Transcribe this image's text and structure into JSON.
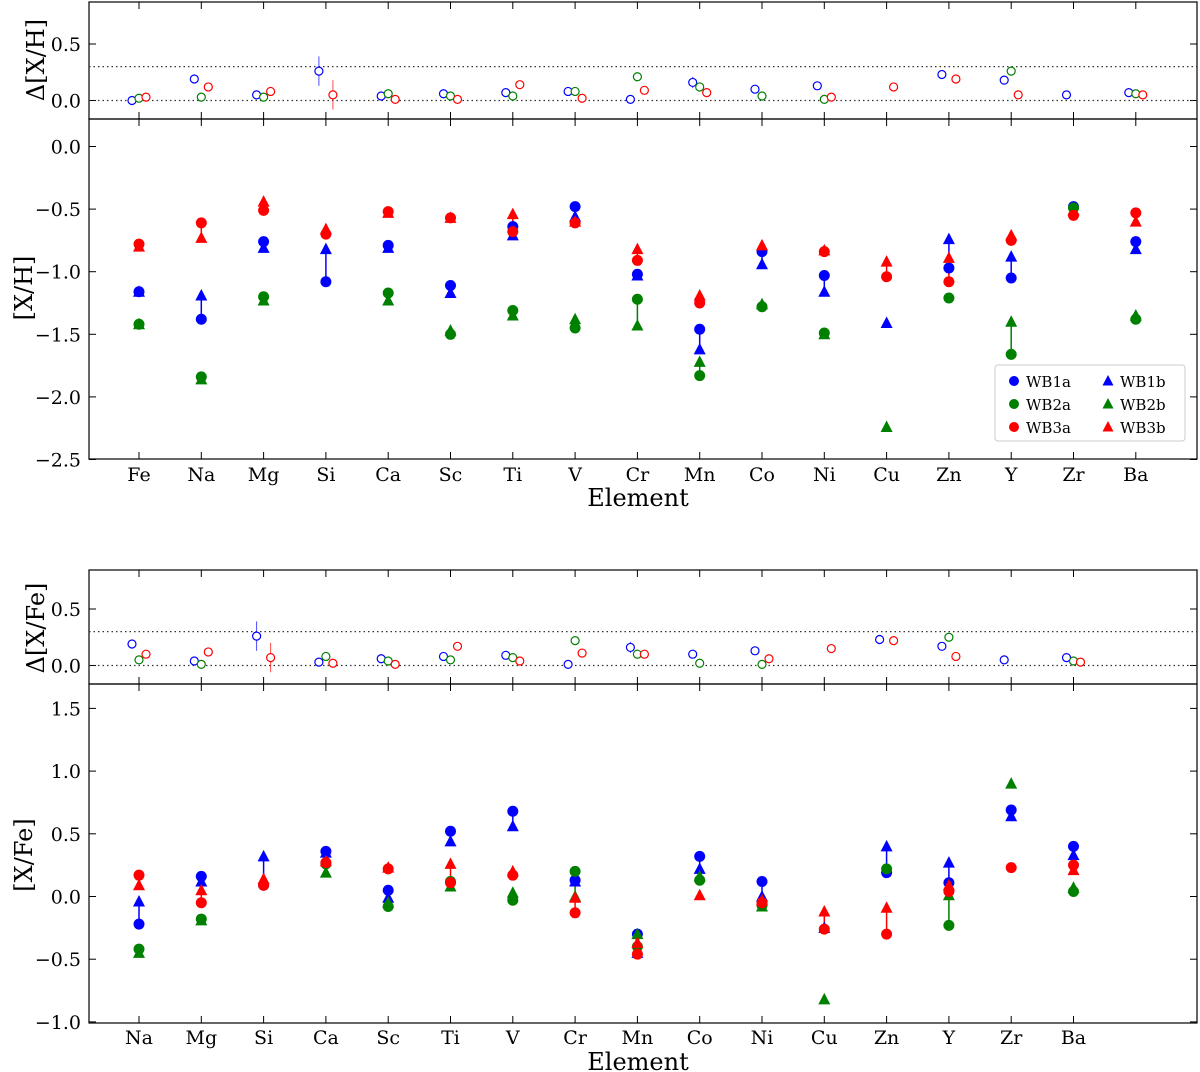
{
  "figure": {
    "x_label": "Element",
    "panel_y_labels": [
      "Δ[X/H]",
      "[X/H]",
      "Δ[X/Fe]",
      "[X/Fe]"
    ]
  },
  "chart_data": [
    {
      "type": "scatter",
      "panel": "delta_XH",
      "ylabel": "Δ[X/H]",
      "xlabel": "",
      "categories": [
        "Fe",
        "Na",
        "Mg",
        "Si",
        "Ca",
        "Sc",
        "Ti",
        "V",
        "Cr",
        "Mn",
        "Co",
        "Ni",
        "Cu",
        "Zn",
        "Y",
        "Zr",
        "Ba"
      ],
      "ylim": [
        -0.12,
        0.5
      ],
      "yticks": [
        0.0,
        0.5
      ],
      "ytick_labels": [
        "0.0",
        "0.5"
      ],
      "reference_lines": [
        0.0,
        0.3
      ],
      "marker": "open-circle",
      "series": [
        {
          "key": "WB1",
          "color": "#0000ff",
          "values": [
            0.0,
            0.19,
            0.05,
            0.26,
            0.04,
            0.06,
            0.07,
            0.08,
            0.01,
            0.16,
            0.1,
            0.13,
            null,
            0.23,
            0.18,
            0.05,
            0.07
          ],
          "errors": [
            0,
            0,
            0,
            0.13,
            0,
            0.04,
            0,
            0,
            0.02,
            0.05,
            0,
            0,
            0,
            0,
            0,
            0,
            0
          ]
        },
        {
          "key": "WB2",
          "color": "#008000",
          "values": [
            0.02,
            0.03,
            0.03,
            null,
            0.06,
            0.04,
            0.04,
            0.08,
            0.21,
            0.12,
            0.04,
            0.01,
            null,
            null,
            0.26,
            null,
            0.06
          ],
          "errors": [
            0,
            0,
            0,
            0,
            0,
            0,
            0,
            0,
            0,
            0.04,
            0,
            0,
            0,
            0,
            0,
            0,
            0
          ]
        },
        {
          "key": "WB3",
          "color": "#ff0000",
          "values": [
            0.03,
            0.12,
            0.08,
            0.05,
            0.01,
            0.01,
            0.14,
            0.02,
            0.09,
            0.07,
            null,
            0.03,
            0.12,
            0.19,
            0.05,
            null,
            0.05
          ],
          "errors": [
            0,
            0,
            0,
            0.13,
            0,
            0.03,
            0,
            0,
            0.03,
            0.04,
            0,
            0,
            0,
            0,
            0,
            0,
            0
          ]
        }
      ]
    },
    {
      "type": "scatter",
      "panel": "XH",
      "ylabel": "[X/H]",
      "xlabel": "Element",
      "categories": [
        "Fe",
        "Na",
        "Mg",
        "Si",
        "Ca",
        "Sc",
        "Ti",
        "V",
        "Cr",
        "Mn",
        "Co",
        "Ni",
        "Cu",
        "Zn",
        "Y",
        "Zr",
        "Ba"
      ],
      "ylim": [
        -2.5,
        0.2
      ],
      "yticks": [
        0.0,
        -0.5,
        -1.0,
        -1.5,
        -2.0,
        -2.5
      ],
      "ytick_labels": [
        "0.0",
        "−0.5",
        "−1.0",
        "−1.5",
        "−2.0",
        "−2.5"
      ],
      "legend": {
        "placement": "lower-right",
        "entries": [
          {
            "label": "WB1a",
            "color": "#0000ff",
            "marker": "circle"
          },
          {
            "label": "WB1b",
            "color": "#0000ff",
            "marker": "triangle"
          },
          {
            "label": "WB2a",
            "color": "#008000",
            "marker": "circle"
          },
          {
            "label": "WB2b",
            "color": "#008000",
            "marker": "triangle"
          },
          {
            "label": "WB3a",
            "color": "#ff0000",
            "marker": "circle"
          },
          {
            "label": "WB3b",
            "color": "#ff0000",
            "marker": "triangle"
          }
        ]
      },
      "series": [
        {
          "name": "WB1a",
          "color": "#0000ff",
          "marker": "circle",
          "values": [
            -1.16,
            -1.38,
            -0.76,
            -1.08,
            -0.79,
            -1.11,
            -0.64,
            -0.48,
            -1.02,
            -1.46,
            -0.84,
            -1.03,
            null,
            -0.97,
            -1.05,
            -0.48,
            -0.76
          ]
        },
        {
          "name": "WB1b",
          "color": "#0000ff",
          "marker": "triangle",
          "values": [
            -1.16,
            -1.19,
            -0.81,
            -0.82,
            -0.81,
            -1.17,
            -0.71,
            -0.56,
            -1.03,
            -1.62,
            -0.94,
            -1.16,
            -1.41,
            -0.74,
            -0.88,
            -0.51,
            -0.82
          ]
        },
        {
          "name": "WB2a",
          "color": "#008000",
          "marker": "circle",
          "values": [
            -1.42,
            -1.84,
            -1.2,
            null,
            -1.17,
            -1.5,
            -1.31,
            -1.45,
            -1.22,
            -1.83,
            -1.28,
            -1.49,
            null,
            -1.21,
            -1.66,
            -0.49,
            -1.38
          ]
        },
        {
          "name": "WB2b",
          "color": "#008000",
          "marker": "triangle",
          "values": [
            -1.42,
            -1.86,
            -1.23,
            null,
            -1.23,
            -1.47,
            -1.35,
            -1.38,
            -1.43,
            -1.72,
            -1.26,
            -1.5,
            -2.24,
            null,
            -1.4,
            -0.51,
            -1.35
          ]
        },
        {
          "name": "WB3a",
          "color": "#ff0000",
          "marker": "circle",
          "values": [
            -0.78,
            -0.61,
            -0.51,
            -0.7,
            -0.52,
            -0.57,
            -0.68,
            -0.61,
            -0.91,
            -1.25,
            null,
            -0.84,
            -1.04,
            -1.08,
            -0.75,
            -0.55,
            -0.53
          ]
        },
        {
          "name": "WB3b",
          "color": "#ff0000",
          "marker": "triangle",
          "values": [
            -0.8,
            -0.73,
            -0.44,
            -0.66,
            -0.53,
            -0.57,
            -0.54,
            -0.6,
            -0.82,
            -1.19,
            -0.79,
            -0.83,
            -0.92,
            -0.89,
            -0.71,
            null,
            -0.6
          ]
        }
      ]
    },
    {
      "type": "scatter",
      "panel": "delta_XFe",
      "ylabel": "Δ[X/Fe]",
      "xlabel": "",
      "categories": [
        "Na",
        "Mg",
        "Si",
        "Ca",
        "Sc",
        "Ti",
        "V",
        "Cr",
        "Mn",
        "Co",
        "Ni",
        "Cu",
        "Zn",
        "Y",
        "Zr",
        "Ba"
      ],
      "ylim": [
        -0.12,
        0.5
      ],
      "yticks": [
        0.0,
        0.5
      ],
      "ytick_labels": [
        "0.0",
        "0.5"
      ],
      "reference_lines": [
        0.0,
        0.3
      ],
      "marker": "open-circle",
      "series": [
        {
          "key": "WB1",
          "color": "#0000ff",
          "values": [
            0.19,
            0.04,
            0.26,
            0.03,
            0.06,
            0.08,
            0.09,
            0.01,
            0.16,
            0.1,
            0.13,
            null,
            0.23,
            0.17,
            0.05,
            0.07
          ],
          "errors": [
            0,
            0,
            0.13,
            0,
            0.04,
            0,
            0,
            0.02,
            0.05,
            0,
            0,
            0,
            0,
            0,
            0,
            0
          ]
        },
        {
          "key": "WB2",
          "color": "#008000",
          "values": [
            0.05,
            0.01,
            null,
            0.08,
            0.04,
            0.05,
            0.07,
            0.22,
            0.1,
            0.02,
            0.01,
            null,
            null,
            0.25,
            null,
            0.04
          ],
          "errors": [
            0,
            0,
            0,
            0,
            0,
            0,
            0,
            0,
            0.04,
            0,
            0,
            0,
            0,
            0,
            0,
            0
          ]
        },
        {
          "key": "WB3",
          "color": "#ff0000",
          "values": [
            0.1,
            0.12,
            0.07,
            0.02,
            0.01,
            0.17,
            0.04,
            0.11,
            0.1,
            null,
            0.06,
            0.15,
            0.22,
            0.08,
            null,
            0.03
          ],
          "errors": [
            0,
            0,
            0.13,
            0,
            0.03,
            0,
            0,
            0.03,
            0.04,
            0,
            0,
            0,
            0,
            0,
            0,
            0
          ]
        }
      ]
    },
    {
      "type": "scatter",
      "panel": "XFe",
      "ylabel": "[X/Fe]",
      "xlabel": "Element",
      "categories": [
        "Na",
        "Mg",
        "Si",
        "Ca",
        "Sc",
        "Ti",
        "V",
        "Cr",
        "Mn",
        "Co",
        "Ni",
        "Cu",
        "Zn",
        "Y",
        "Zr",
        "Ba"
      ],
      "ylim": [
        -1.0,
        1.7
      ],
      "yticks": [
        1.5,
        1.0,
        0.5,
        0.0,
        -0.5,
        -1.0
      ],
      "ytick_labels": [
        "1.5",
        "1.0",
        "0.5",
        "0.0",
        "−0.5",
        "−1.0"
      ],
      "series": [
        {
          "name": "WB1a",
          "color": "#0000ff",
          "marker": "circle",
          "values": [
            -0.22,
            0.16,
            0.09,
            0.36,
            0.05,
            0.52,
            0.68,
            0.13,
            -0.3,
            0.32,
            0.12,
            null,
            0.19,
            0.11,
            0.69,
            0.4
          ]
        },
        {
          "name": "WB1b",
          "color": "#0000ff",
          "marker": "triangle",
          "values": [
            -0.04,
            0.12,
            0.32,
            0.35,
            -0.01,
            0.44,
            0.56,
            0.12,
            -0.45,
            0.22,
            0.0,
            -0.25,
            0.4,
            0.27,
            0.64,
            0.33
          ]
        },
        {
          "name": "WB2a",
          "color": "#008000",
          "marker": "circle",
          "values": [
            -0.42,
            -0.18,
            null,
            0.26,
            -0.08,
            0.12,
            -0.03,
            0.2,
            -0.4,
            0.13,
            -0.07,
            null,
            0.22,
            -0.23,
            null,
            0.04
          ]
        },
        {
          "name": "WB2b",
          "color": "#008000",
          "marker": "triangle",
          "values": [
            -0.45,
            -0.19,
            null,
            0.19,
            -0.05,
            0.08,
            0.03,
            0.0,
            -0.3,
            0.16,
            -0.08,
            -0.82,
            null,
            0.01,
            0.9,
            0.07
          ]
        },
        {
          "name": "WB3a",
          "color": "#ff0000",
          "marker": "circle",
          "values": [
            0.17,
            -0.05,
            0.09,
            0.27,
            0.22,
            0.11,
            0.17,
            -0.13,
            -0.46,
            null,
            -0.05,
            -0.26,
            -0.3,
            0.04,
            0.23,
            0.25
          ]
        },
        {
          "name": "WB3b",
          "color": "#ff0000",
          "marker": "triangle",
          "values": [
            0.09,
            0.05,
            0.14,
            0.28,
            0.23,
            0.26,
            0.2,
            -0.01,
            -0.37,
            0.01,
            -0.03,
            -0.12,
            -0.09,
            0.09,
            null,
            0.21
          ]
        }
      ]
    }
  ]
}
